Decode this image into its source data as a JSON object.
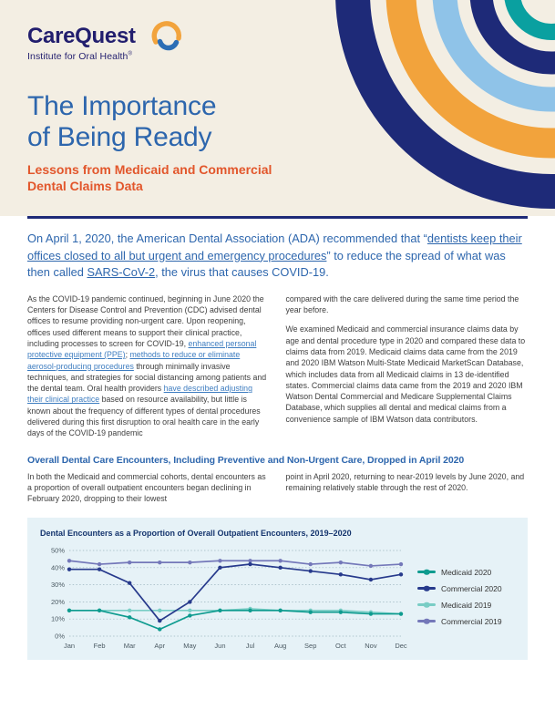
{
  "brand": {
    "logo_text": "CareQuest",
    "logo_sub": "Institute for Oral Health",
    "reg_mark": "®"
  },
  "header": {
    "title_line1": "The Importance",
    "title_line2": "of Being Ready",
    "subtitle_line1": "Lessons from Medicaid and Commercial",
    "subtitle_line2": "Dental Claims Data"
  },
  "intro": {
    "seg1": "On April 1, 2020, the American Dental Association (ADA) recommended that “",
    "link1": "dentists keep their offices closed to all but urgent and emergency procedures",
    "seg2": "” to reduce the spread of what was then called ",
    "link2": "SARS-CoV-2",
    "seg3": ", the virus that causes COVID-19."
  },
  "body": {
    "col1": {
      "seg1": "As the COVID-19 pandemic continued, beginning in June 2020 the Centers for Disease Control and Prevention (CDC) advised dental offices to resume providing non-urgent care. Upon reopening, offices used different means to support their clinical practice, including processes to screen for COVID-19, ",
      "link1": "enhanced personal protective equipment (PPE)",
      "seg2": "; ",
      "link2": "methods to reduce or eliminate aerosol-producing procedures",
      "seg3": " through minimally invasive techniques, and strategies for social distancing among patients and the dental team. Oral health providers ",
      "link3": "have described adjusting their clinical practice",
      "seg4": " based on resource availability, but little is known about the frequency of different types of dental procedures delivered during this first disruption to oral health care in the early days of the COVID-19 pandemic"
    },
    "col2": {
      "para1": "compared with the care delivered during the same time period the year before.",
      "para2": "We examined Medicaid and commercial insurance claims data by age and dental procedure type in 2020 and compared these data to claims data from 2019. Medicaid claims data came from the 2019 and 2020 IBM Watson Multi-State Medicaid MarketScan Database, which includes data from all Medicaid claims in 13 de-identified states. Commercial claims data came from the 2019 and 2020 IBM Watson Dental Commercial and Medicare Supplemental Claims Database, which supplies all dental and medical claims from a convenience sample of IBM Watson data contributors."
    }
  },
  "section": {
    "heading": "Overall Dental Care Encounters, Including Preventive and Non-Urgent Care, Dropped in April 2020",
    "col1": "In both the Medicaid and commercial cohorts, dental encounters as a proportion of overall outpatient encounters began declining in February 2020, dropping to their lowest",
    "col2": "point in April 2020, returning to near-2019 levels by June 2020, and remaining relatively stable through the rest of 2020."
  },
  "chart_data": {
    "type": "line",
    "title": "Dental Encounters as a Proportion of Overall Outpatient Encounters, 2019–2020",
    "x": [
      "Jan",
      "Feb",
      "Mar",
      "Apr",
      "May",
      "Jun",
      "Jul",
      "Aug",
      "Sep",
      "Oct",
      "Nov",
      "Dec"
    ],
    "y_ticks": [
      "0%",
      "10%",
      "20%",
      "30%",
      "40%",
      "50%"
    ],
    "ylim": [
      0,
      50
    ],
    "grid": true,
    "legend_position": "right",
    "series": [
      {
        "name": "Medicaid 2020",
        "color": "#0e9b8f",
        "values": [
          15,
          15,
          11,
          4,
          12,
          15,
          15,
          15,
          14,
          14,
          13,
          13
        ]
      },
      {
        "name": "Commercial 2020",
        "color": "#273a8c",
        "values": [
          39,
          39,
          31,
          9,
          20,
          40,
          42,
          40,
          38,
          36,
          33,
          36
        ]
      },
      {
        "name": "Medicaid 2019",
        "color": "#79cdc5",
        "values": [
          15,
          15,
          15,
          15,
          15,
          15,
          16,
          15,
          15,
          15,
          14,
          13
        ]
      },
      {
        "name": "Commercial 2019",
        "color": "#7478b9",
        "values": [
          44,
          42,
          43,
          43,
          43,
          44,
          44,
          44,
          42,
          43,
          41,
          42
        ]
      }
    ]
  },
  "colors": {
    "brand_navy": "#1e2a78",
    "accent_orange": "#e2562b",
    "heading_blue": "#2d66ad",
    "masthead_cream": "#f3eee3",
    "panel_blue": "#e6f2f7"
  }
}
